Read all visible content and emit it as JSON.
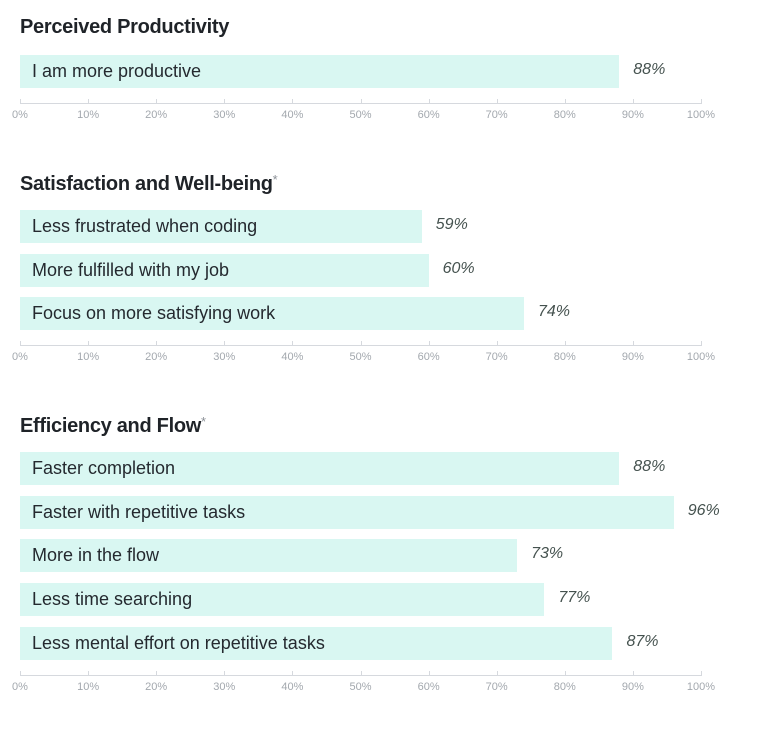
{
  "chart_data": [
    {
      "type": "bar",
      "orientation": "horizontal",
      "title": "Perceived Productivity",
      "title_mark": "",
      "categories": [
        "I am more productive"
      ],
      "values": [
        88
      ],
      "value_labels": [
        "88%"
      ],
      "xlim": [
        0,
        100
      ],
      "ticks": [
        "0%",
        "10%",
        "20%",
        "30%",
        "40%",
        "50%",
        "60%",
        "70%",
        "80%",
        "90%",
        "100%"
      ]
    },
    {
      "type": "bar",
      "orientation": "horizontal",
      "title": "Satisfaction and Well-being",
      "title_mark": "*",
      "categories": [
        "Less frustrated when coding",
        "More fulfilled with my job",
        "Focus on more satisfying work"
      ],
      "values": [
        59,
        60,
        74
      ],
      "value_labels": [
        "59%",
        "60%",
        "74%"
      ],
      "xlim": [
        0,
        100
      ],
      "ticks": [
        "0%",
        "10%",
        "20%",
        "30%",
        "40%",
        "50%",
        "60%",
        "70%",
        "80%",
        "90%",
        "100%"
      ]
    },
    {
      "type": "bar",
      "orientation": "horizontal",
      "title": "Efficiency and Flow",
      "title_mark": "*",
      "categories": [
        "Faster completion",
        "Faster with repetitive tasks",
        "More in the flow",
        "Less time searching",
        "Less mental effort on repetitive tasks"
      ],
      "values": [
        88,
        96,
        73,
        77,
        87
      ],
      "value_labels": [
        "88%",
        "96%",
        "73%",
        "77%",
        "87%"
      ],
      "xlim": [
        0,
        100
      ],
      "ticks": [
        "0%",
        "10%",
        "20%",
        "30%",
        "40%",
        "50%",
        "60%",
        "70%",
        "80%",
        "90%",
        "100%"
      ]
    }
  ],
  "colors": {
    "bar": "#d9f7f2",
    "text": "#24292f",
    "value": "#45524f",
    "axis": "#a3a8ae"
  }
}
